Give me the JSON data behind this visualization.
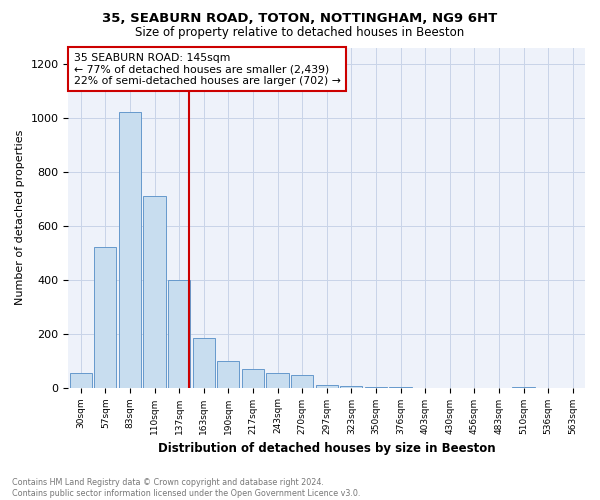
{
  "title1": "35, SEABURN ROAD, TOTON, NOTTINGHAM, NG9 6HT",
  "title2": "Size of property relative to detached houses in Beeston",
  "xlabel": "Distribution of detached houses by size in Beeston",
  "ylabel": "Number of detached properties",
  "footnote": "Contains HM Land Registry data © Crown copyright and database right 2024.\nContains public sector information licensed under the Open Government Licence v3.0.",
  "bar_color": "#c8ddef",
  "bar_edge_color": "#6699cc",
  "bin_labels": [
    "30sqm",
    "57sqm",
    "83sqm",
    "110sqm",
    "137sqm",
    "163sqm",
    "190sqm",
    "217sqm",
    "243sqm",
    "270sqm",
    "297sqm",
    "323sqm",
    "350sqm",
    "376sqm",
    "403sqm",
    "430sqm",
    "456sqm",
    "483sqm",
    "510sqm",
    "536sqm",
    "563sqm"
  ],
  "bar_values": [
    55,
    520,
    1020,
    710,
    400,
    185,
    100,
    70,
    55,
    45,
    10,
    5,
    3,
    2,
    0,
    0,
    0,
    0,
    3,
    0,
    0
  ],
  "property_line_x": 4.42,
  "property_line_color": "#cc0000",
  "annotation_line1": "35 SEABURN ROAD: 145sqm",
  "annotation_line2": "← 77% of detached houses are smaller (2,439)",
  "annotation_line3": "22% of semi-detached houses are larger (702) →",
  "annotation_box_color": "#cc0000",
  "ylim": [
    0,
    1260
  ],
  "yticks": [
    0,
    200,
    400,
    600,
    800,
    1000,
    1200
  ],
  "grid_color": "#c8d4e8",
  "background_color": "#eef2fa"
}
